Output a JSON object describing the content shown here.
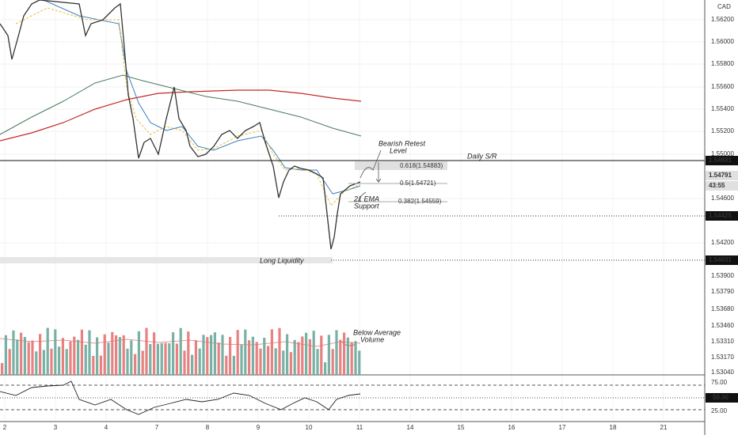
{
  "currency": "CAD",
  "price_axis": [
    "1.56200",
    "1.56000",
    "1.55800",
    "1.55600",
    "1.55400",
    "1.55200",
    "1.55000",
    "1.54600",
    "1.54200"
  ],
  "price_badges": [
    "1.54931",
    "1.54791",
    "43:55",
    "1.54425",
    "1.54031"
  ],
  "lower_axis": [
    "1.53900",
    "1.53790",
    "1.53680",
    "1.53460",
    "1.53310",
    "1.53170",
    "1.53040",
    "75.00",
    "25.00"
  ],
  "rsi_badge": "50.00",
  "date_axis": [
    "2",
    "3",
    "4",
    "7",
    "8",
    "9",
    "10",
    "11",
    "14",
    "15",
    "16",
    "17",
    "18",
    "21"
  ],
  "fib_levels": [
    "0.618(1.54883)",
    "0.5(1.54721)",
    "0.382(1.54559)"
  ],
  "annotations": [
    {
      "lines": [
        "Bearish Retest",
        "Level"
      ]
    },
    {
      "lines": [
        "Daily S/R"
      ]
    },
    {
      "lines": [
        "21 EMA",
        "Support"
      ]
    },
    {
      "lines": [
        "Long Liquidity"
      ]
    },
    {
      "lines": [
        "Below Average",
        "Volume"
      ]
    }
  ]
}
